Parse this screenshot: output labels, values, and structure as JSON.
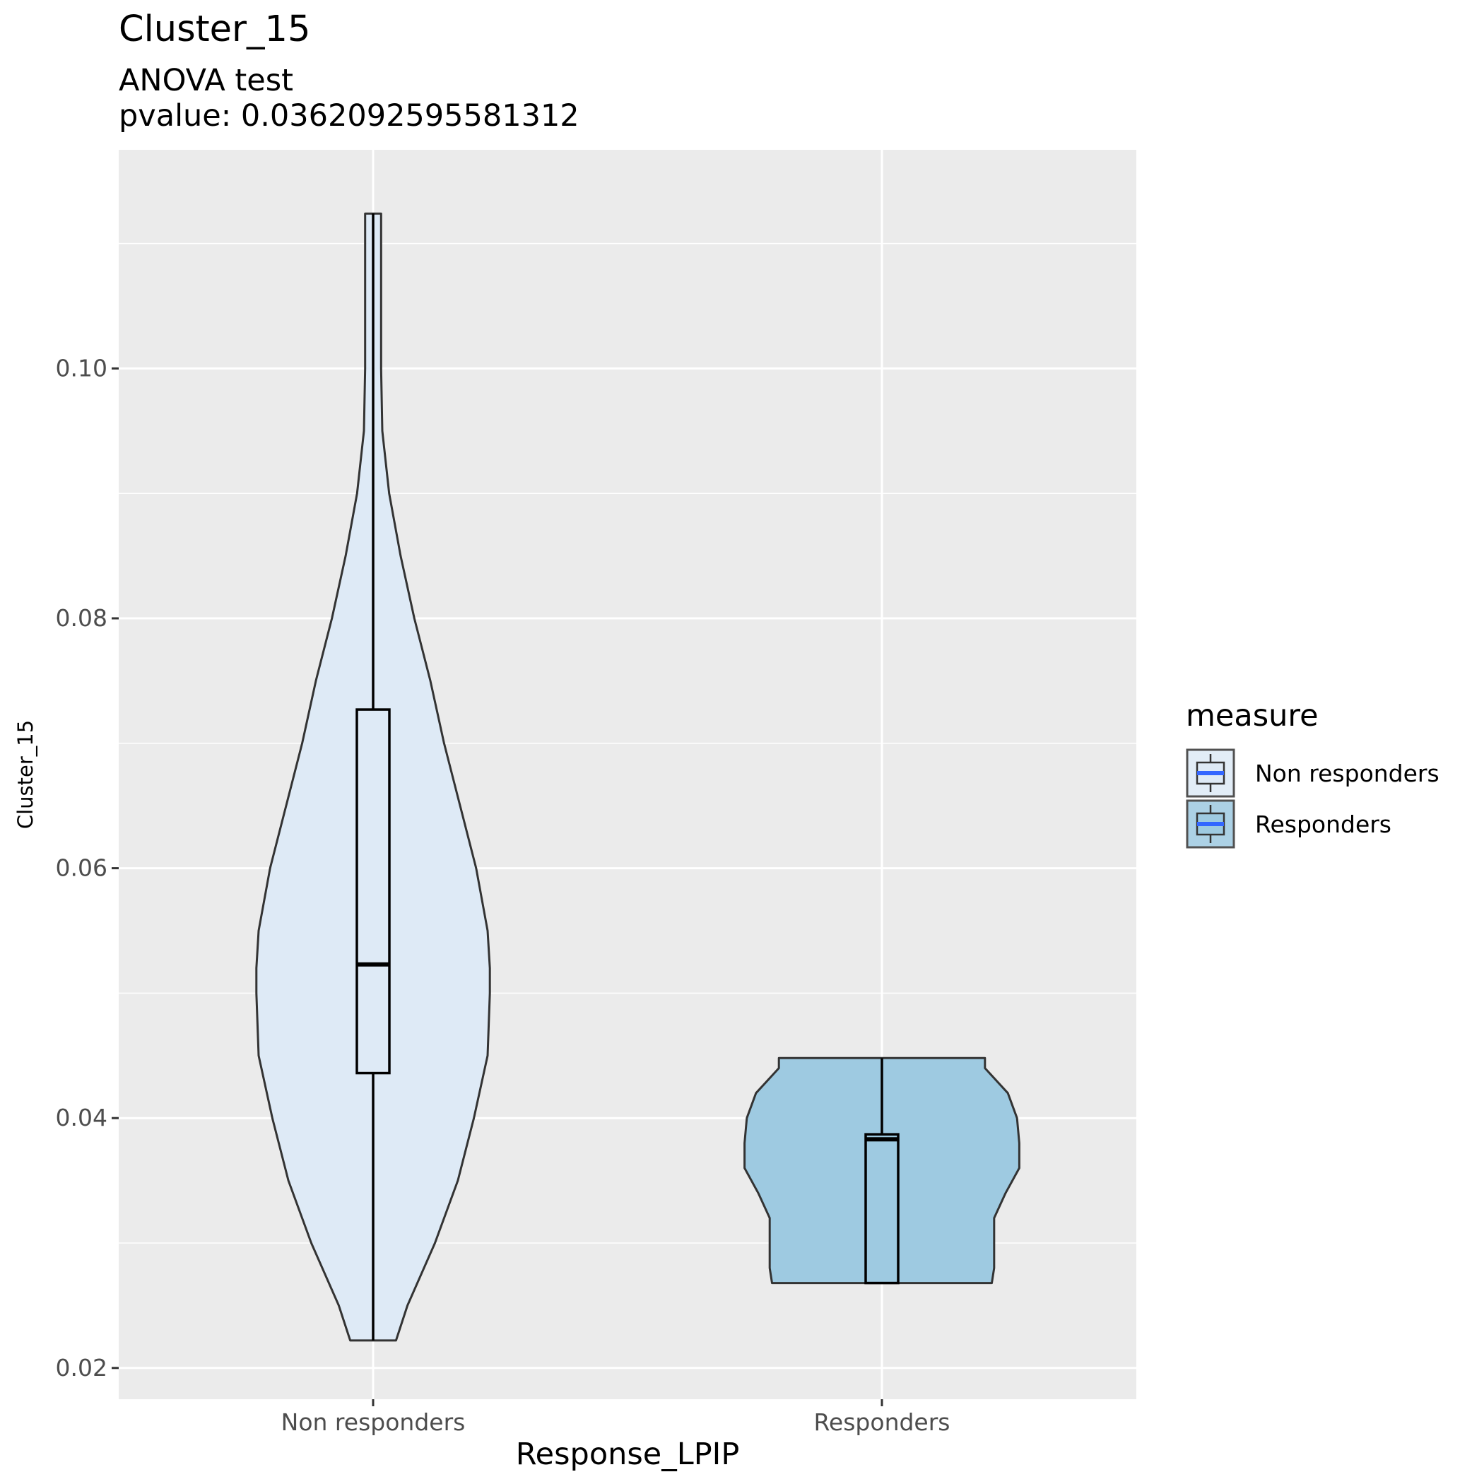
{
  "chart_data": {
    "type": "violin",
    "title": "Cluster_15",
    "subtitle_lines": [
      "ANOVA test",
      "pvalue: 0.0362092595581312"
    ],
    "xlabel": "Response_LPIP",
    "ylabel": "Cluster_15",
    "ylim": [
      0.0175,
      0.1175
    ],
    "y_ticks": [
      0.02,
      0.04,
      0.06,
      0.08,
      0.1
    ],
    "y_tick_labels": [
      "0.02",
      "0.04",
      "0.06",
      "0.08",
      "0.10"
    ],
    "categories": [
      "Non responders",
      "Responders"
    ],
    "grid": true,
    "legend": {
      "title": "measure",
      "position": "right",
      "entries": [
        "Non responders",
        "Responders"
      ]
    },
    "series": [
      {
        "name": "Non responders",
        "color": "#deeaf6",
        "box": {
          "min": 0.0222,
          "q1": 0.0436,
          "median": 0.0523,
          "q3": 0.0727,
          "max": 0.1124
        },
        "violin": {
          "y": [
            0.0222,
            0.025,
            0.03,
            0.035,
            0.04,
            0.045,
            0.05,
            0.052,
            0.055,
            0.06,
            0.065,
            0.07,
            0.075,
            0.08,
            0.085,
            0.09,
            0.095,
            0.1,
            0.105,
            0.11,
            0.1124
          ],
          "half_width": [
            0.1,
            0.15,
            0.27,
            0.37,
            0.44,
            0.5,
            0.51,
            0.51,
            0.5,
            0.45,
            0.38,
            0.31,
            0.25,
            0.18,
            0.12,
            0.07,
            0.04,
            0.035,
            0.035,
            0.035,
            0.035
          ]
        }
      },
      {
        "name": "Responders",
        "color": "#9ecae1",
        "box": {
          "min": 0.0268,
          "q1": 0.0268,
          "median": 0.0383,
          "q3": 0.0387,
          "max": 0.0448
        },
        "violin": {
          "y": [
            0.0268,
            0.028,
            0.03,
            0.032,
            0.034,
            0.036,
            0.038,
            0.04,
            0.042,
            0.044,
            0.0448
          ],
          "half_width": [
            0.48,
            0.49,
            0.49,
            0.49,
            0.54,
            0.6,
            0.6,
            0.59,
            0.55,
            0.45,
            0.45
          ]
        }
      }
    ]
  }
}
